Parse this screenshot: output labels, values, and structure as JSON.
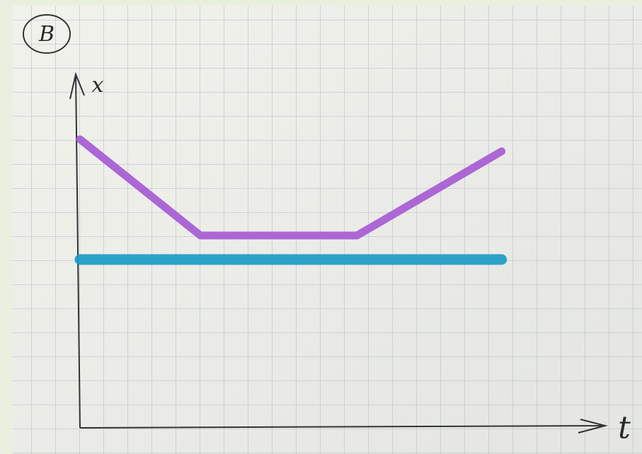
{
  "chart_data": {
    "type": "line",
    "label": "B",
    "x_label": "t",
    "y_label": "x",
    "x": [
      0,
      5,
      11.5,
      17.5
    ],
    "series": [
      {
        "color": "#a65bd4",
        "values": [
          12,
          8,
          8,
          11.5
        ]
      },
      {
        "color": "#1b9bc4",
        "values": [
          7,
          7,
          7,
          7
        ]
      }
    ],
    "xlim": [
      0,
      21.8
    ],
    "ylim": [
      0,
      15
    ]
  }
}
